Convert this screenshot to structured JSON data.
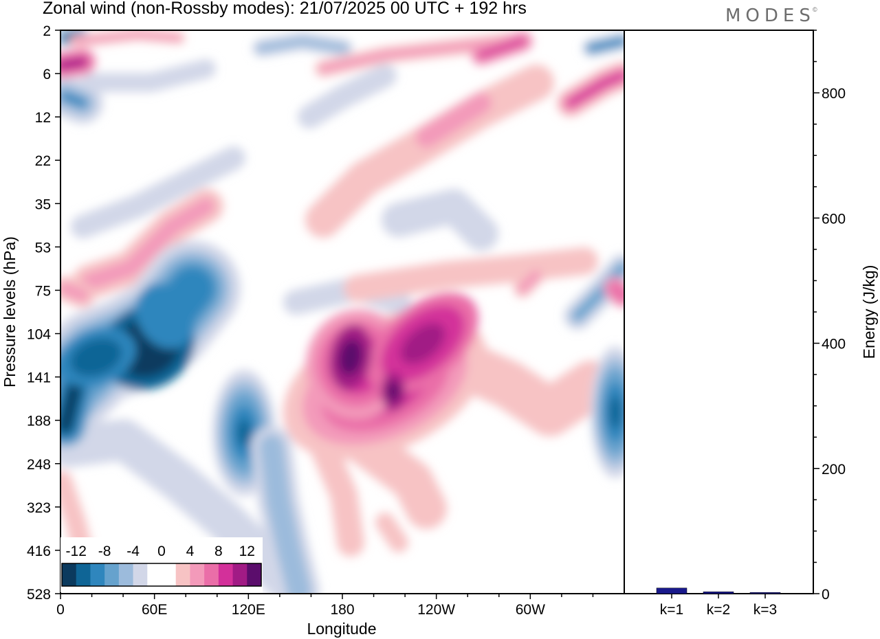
{
  "header": {
    "title": "Zonal wind (non-Rossby modes):  21/07/2025  00 UTC  + 192 hrs",
    "brand": "MODES",
    "brand_mark": "©"
  },
  "chart_data": [
    {
      "type": "heatmap",
      "title": "Zonal wind (non-Rossby modes):  21/07/2025  00 UTC  + 192 hrs",
      "xlabel": "Longitude",
      "ylabel": "Pressure levels (hPa)",
      "x_ticks": [
        "0",
        "60E",
        "120E",
        "180",
        "120W",
        "60W"
      ],
      "x_tick_degrees": [
        0,
        60,
        120,
        180,
        240,
        300
      ],
      "x_range_degrees": [
        0,
        360
      ],
      "y_levels": [
        "2",
        "6",
        "12",
        "22",
        "35",
        "53",
        "75",
        "104",
        "141",
        "188",
        "248",
        "323",
        "416",
        "528"
      ],
      "colorbar": {
        "labels": [
          "-12",
          "-8",
          "-4",
          "0",
          "4",
          "8",
          "12"
        ],
        "colors": [
          "#0b3a5e",
          "#0f6596",
          "#2f86bd",
          "#66a2cd",
          "#9cbbdc",
          "#d2d7e8",
          "#ffffff",
          "#ffffff",
          "#f7c3c4",
          "#f39aba",
          "#ea6ea8",
          "#d3309a",
          "#a11b85",
          "#5b0d6c"
        ]
      },
      "features": [
        {
          "kind": "negative",
          "peak": -14,
          "lon": 50,
          "level": "141"
        },
        {
          "kind": "negative",
          "peak": -12,
          "lon": 5,
          "level": "188"
        },
        {
          "kind": "negative",
          "peak": -9,
          "lon": 115,
          "level": "188"
        },
        {
          "kind": "negative",
          "peak": -9,
          "lon": 355,
          "level": "188"
        },
        {
          "kind": "positive",
          "peak": 14,
          "lon": 186,
          "level": "141"
        },
        {
          "kind": "positive",
          "peak": 11,
          "lon": 215,
          "level": "141"
        },
        {
          "kind": "positive",
          "peak": 10,
          "lon": 10,
          "level": "6"
        },
        {
          "kind": "positive",
          "peak": 9,
          "lon": 345,
          "level": "6"
        }
      ]
    },
    {
      "type": "bar",
      "ylabel": "Energy (J/kg)",
      "categories": [
        "k=1",
        "k=2",
        "k=3"
      ],
      "values": [
        9,
        3,
        2
      ],
      "ylim": [
        0,
        900
      ],
      "y_ticks": [
        "0",
        "200",
        "400",
        "600",
        "800"
      ],
      "y_tick_values": [
        0,
        200,
        400,
        600,
        800
      ],
      "bar_color": "#1a1a8c"
    }
  ]
}
